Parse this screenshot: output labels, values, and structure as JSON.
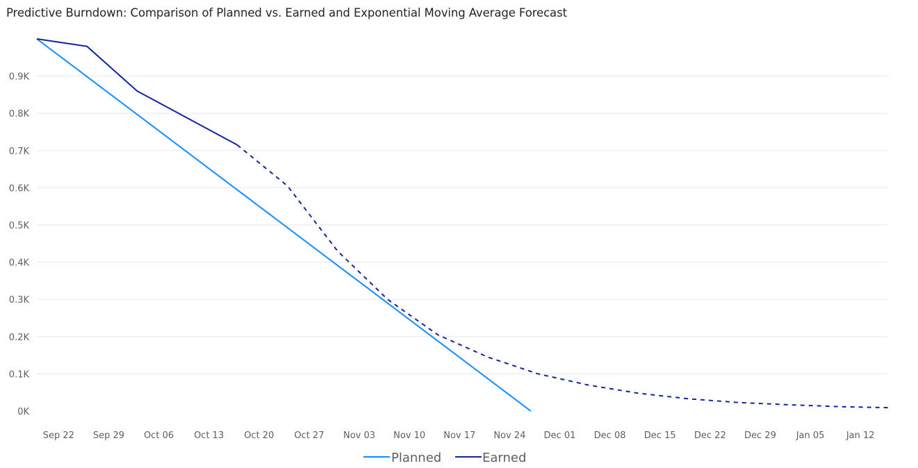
{
  "chart_data": {
    "type": "line",
    "title": "Predictive Burndown: Comparison of Planned vs. Earned and Exponential Moving Average Forecast",
    "x_ticks": [
      "Sep 22",
      "Sep 29",
      "Oct 06",
      "Oct 13",
      "Oct 20",
      "Oct 27",
      "Nov 03",
      "Nov 10",
      "Nov 17",
      "Nov 24",
      "Dec 01",
      "Dec 08",
      "Dec 15",
      "Dec 22",
      "Dec 29",
      "Jan 05",
      "Jan 12"
    ],
    "y_ticks": [
      "0K",
      "0.1K",
      "0.2K",
      "0.3K",
      "0.4K",
      "0.5K",
      "0.6K",
      "0.7K",
      "0.8K",
      "0.9K"
    ],
    "ylim": [
      0,
      1000
    ],
    "grid": true,
    "legend": "bottom-center",
    "colors": {
      "planned": "#118dff",
      "earned": "#12239e"
    },
    "series": [
      {
        "name": "Planned",
        "style": "solid",
        "points": [
          [
            "2024-09-21",
            1000
          ],
          [
            "2024-11-29",
            0
          ]
        ]
      },
      {
        "name": "Earned",
        "style": "solid",
        "points": [
          [
            "2024-09-21",
            1000
          ],
          [
            "2024-09-28",
            980
          ],
          [
            "2024-10-05",
            860
          ],
          [
            "2024-10-19",
            715
          ]
        ]
      },
      {
        "style": "dashed",
        "points": [
          [
            "2024-10-19",
            715
          ],
          [
            "2024-10-26",
            605
          ],
          [
            "2024-11-02",
            430
          ],
          [
            "2024-11-09",
            300
          ],
          [
            "2024-11-16",
            205
          ],
          [
            "2024-11-23",
            145
          ],
          [
            "2024-11-30",
            100
          ],
          [
            "2024-12-07",
            70
          ],
          [
            "2024-12-14",
            48
          ],
          [
            "2024-12-21",
            33
          ],
          [
            "2024-12-28",
            23
          ],
          [
            "2025-01-04",
            17
          ],
          [
            "2025-01-11",
            12
          ],
          [
            "2025-01-18",
            9
          ]
        ]
      }
    ]
  }
}
